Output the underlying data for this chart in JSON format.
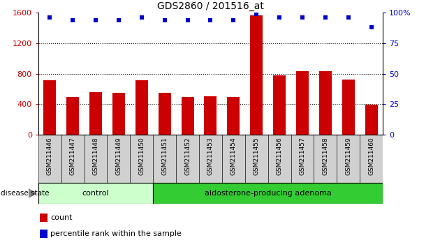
{
  "title": "GDS2860 / 201516_at",
  "samples": [
    "GSM211446",
    "GSM211447",
    "GSM211448",
    "GSM211449",
    "GSM211450",
    "GSM211451",
    "GSM211452",
    "GSM211453",
    "GSM211454",
    "GSM211455",
    "GSM211456",
    "GSM211457",
    "GSM211458",
    "GSM211459",
    "GSM211460"
  ],
  "counts": [
    710,
    490,
    560,
    545,
    710,
    545,
    495,
    500,
    490,
    1565,
    775,
    830,
    830,
    720,
    390
  ],
  "percentiles": [
    96,
    94,
    94,
    94,
    96,
    94,
    94,
    94,
    94,
    99,
    96,
    96,
    96,
    96,
    88
  ],
  "control_count": 5,
  "adenoma_count": 10,
  "control_label": "control",
  "adenoma_label": "aldosterone-producing adenoma",
  "disease_state_label": "disease state",
  "count_legend": "count",
  "percentile_legend": "percentile rank within the sample",
  "bar_color": "#cc0000",
  "dot_color": "#0000cc",
  "control_bg": "#ccffcc",
  "adenoma_bg": "#33cc33",
  "ylim_left": [
    0,
    1600
  ],
  "yticks_left": [
    0,
    400,
    800,
    1200,
    1600
  ],
  "ylim_right": [
    0,
    100
  ],
  "yticks_right": [
    0,
    25,
    50,
    75,
    100
  ],
  "grid_values": [
    400,
    800,
    1200
  ],
  "left_axis_color": "#cc0000",
  "right_axis_color": "#0000cc",
  "sample_area_color": "#d0d0d0",
  "fig_width": 6.3,
  "fig_height": 3.54,
  "dpi": 100
}
